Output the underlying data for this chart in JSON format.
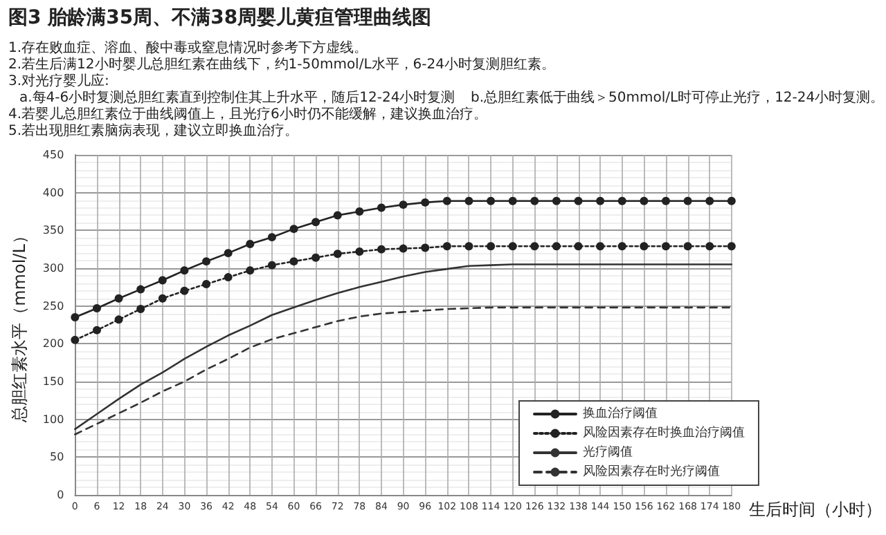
{
  "chart_data": {
    "type": "line",
    "title": "图3 胎龄满35周、不满38周婴儿黄疸管理曲线图",
    "annotations": [
      "1.存在败血症、溶血、酸中毒或窒息情况时参考下方虚线。",
      "2.若生后满12小时婴儿总胆红素在曲线下，约1-50mmol/L水平，6-24小时复测胆红素。",
      "3.对光疗婴儿应:",
      "a.每4-6小时复测总胆红素直到控制住其上升水平，随后12-24小时复测",
      "b.总胆红素低于曲线＞50mmol/L时可停止光疗，12-24小时复测。",
      "4.若婴儿总胆红素位于曲线阈值上，且光疗6小时仍不能缓解，建议换血治疗。",
      "5.若出现胆红素脑病表现，建议立即换血治疗。"
    ],
    "xlabel": "生后时间（小时）",
    "ylabel": "总胆红素水平（mmol/L）",
    "x": [
      0,
      6,
      12,
      18,
      24,
      30,
      36,
      42,
      48,
      54,
      60,
      66,
      72,
      78,
      84,
      90,
      96,
      102,
      108,
      114,
      120,
      126,
      132,
      138,
      144,
      150,
      156,
      162,
      168,
      174,
      180
    ],
    "series": [
      {
        "name": "换血治疗阈值",
        "color": "#222222",
        "marker": "circle",
        "line_style": "solid",
        "values": [
          235,
          247,
          260,
          272,
          284,
          297,
          309,
          320,
          332,
          341,
          352,
          361,
          370,
          375,
          380,
          384,
          387,
          389,
          389,
          389,
          389,
          389,
          389,
          389,
          389,
          389,
          389,
          389,
          389,
          389,
          389
        ]
      },
      {
        "name": "风险因素存在时换血治疗阈值",
        "color": "#222222",
        "marker": "circle",
        "line_style": "dotted",
        "values": [
          205,
          218,
          232,
          246,
          260,
          270,
          279,
          288,
          297,
          304,
          309,
          314,
          319,
          322,
          325,
          326,
          327,
          329,
          329,
          329,
          329,
          329,
          329,
          329,
          329,
          329,
          329,
          329,
          329,
          329,
          329
        ]
      },
      {
        "name": "光疗阈值",
        "color": "#333333",
        "marker": "none",
        "line_style": "solid",
        "values": [
          87,
          107,
          127,
          146,
          162,
          180,
          196,
          211,
          224,
          238,
          248,
          258,
          267,
          275,
          282,
          289,
          295,
          299,
          303,
          304,
          305,
          305,
          305,
          305,
          305,
          305,
          305,
          305,
          305,
          305,
          305
        ]
      },
      {
        "name": "风险因素存在时光疗阈值",
        "color": "#333333",
        "marker": "none",
        "line_style": "dashed",
        "values": [
          80,
          94,
          108,
          122,
          137,
          150,
          166,
          180,
          195,
          206,
          214,
          222,
          230,
          236,
          240,
          242,
          244,
          246,
          247,
          248,
          248,
          248,
          248,
          248,
          248,
          248,
          248,
          248,
          248,
          248,
          248
        ]
      }
    ],
    "xlim": [
      0,
      180
    ],
    "xticks": [
      0,
      6,
      12,
      18,
      24,
      30,
      36,
      42,
      48,
      54,
      60,
      66,
      72,
      78,
      84,
      90,
      96,
      102,
      108,
      114,
      120,
      126,
      132,
      138,
      144,
      150,
      156,
      162,
      168,
      174,
      180
    ],
    "ylim": [
      0,
      450
    ],
    "yticks": [
      0,
      50,
      100,
      150,
      200,
      250,
      300,
      350,
      400,
      450
    ],
    "grid": true,
    "legend": "bottom right"
  }
}
